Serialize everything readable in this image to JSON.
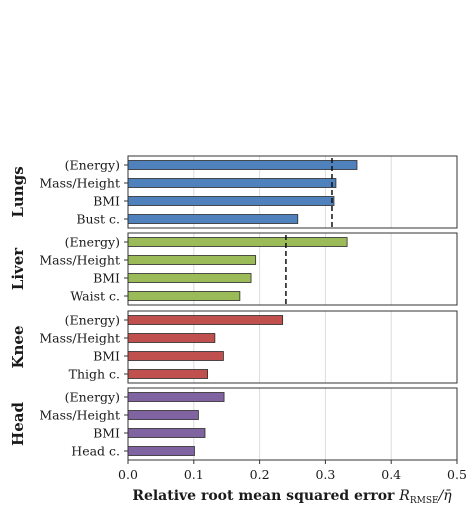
{
  "chart_data": {
    "type": "bar",
    "orientation": "horizontal",
    "xlabel": "Relative root mean squared error R_RMSE/η̄",
    "xlabel_main": "Relative root mean squared error ",
    "xlabel_symbol": "R",
    "xlabel_sub": "RMSE",
    "xlabel_tail": "/η̄",
    "xlim": [
      0.0,
      0.5
    ],
    "xticks": [
      "0.0",
      "0.1",
      "0.2",
      "0.3",
      "0.4",
      "0.5"
    ],
    "grid": true,
    "panels": [
      {
        "organ": "Lungs",
        "color": "#4f81bd",
        "categories": [
          "(Energy)",
          "Mass/Height",
          "BMI",
          "Bust c."
        ],
        "values": [
          0.348,
          0.316,
          0.313,
          0.258
        ],
        "reference_line": 0.31
      },
      {
        "organ": "Liver",
        "color": "#9bbb59",
        "categories": [
          "(Energy)",
          "Mass/Height",
          "BMI",
          "Waist c."
        ],
        "values": [
          0.333,
          0.194,
          0.187,
          0.17
        ],
        "reference_line": 0.24
      },
      {
        "organ": "Knee",
        "color": "#c0504d",
        "categories": [
          "(Energy)",
          "Mass/Height",
          "BMI",
          "Thigh c."
        ],
        "values": [
          0.235,
          0.132,
          0.145,
          0.121
        ],
        "reference_line": null
      },
      {
        "organ": "Head",
        "color": "#8064a2",
        "categories": [
          "(Energy)",
          "Mass/Height",
          "BMI",
          "Head c."
        ],
        "values": [
          0.146,
          0.107,
          0.117,
          0.101
        ],
        "reference_line": null
      }
    ]
  }
}
